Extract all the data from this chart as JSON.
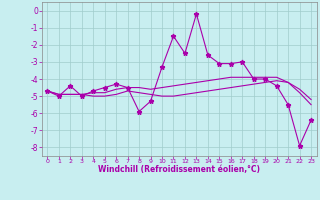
{
  "xlabel": "Windchill (Refroidissement éolien,°C)",
  "bg_color": "#c8eef0",
  "grid_color": "#a0cccc",
  "line_color": "#aa00aa",
  "xlim": [
    -0.5,
    23.5
  ],
  "ylim": [
    -8.5,
    0.5
  ],
  "xticks": [
    0,
    1,
    2,
    3,
    4,
    5,
    6,
    7,
    8,
    9,
    10,
    11,
    12,
    13,
    14,
    15,
    16,
    17,
    18,
    19,
    20,
    21,
    22,
    23
  ],
  "yticks": [
    0,
    -1,
    -2,
    -3,
    -4,
    -5,
    -6,
    -7,
    -8
  ],
  "line1_x": [
    0,
    1,
    2,
    3,
    4,
    5,
    6,
    7,
    8,
    9,
    10,
    11,
    12,
    13,
    14,
    15,
    16,
    17,
    18,
    19,
    20,
    21,
    22,
    23
  ],
  "line1_y": [
    -4.7,
    -5.0,
    -4.4,
    -5.0,
    -4.7,
    -4.5,
    -4.3,
    -4.5,
    -5.9,
    -5.3,
    -3.3,
    -1.5,
    -2.5,
    -0.2,
    -2.6,
    -3.1,
    -3.1,
    -3.0,
    -4.0,
    -4.0,
    -4.4,
    -5.5,
    -7.9,
    -6.4
  ],
  "line2_x": [
    0,
    1,
    2,
    3,
    4,
    5,
    6,
    7,
    8,
    9,
    10,
    11,
    12,
    13,
    14,
    15,
    16,
    17,
    18,
    19,
    20,
    21,
    22,
    23
  ],
  "line2_y": [
    -4.7,
    -4.9,
    -4.9,
    -4.9,
    -4.8,
    -4.8,
    -4.6,
    -4.5,
    -4.5,
    -4.6,
    -4.5,
    -4.4,
    -4.3,
    -4.2,
    -4.1,
    -4.0,
    -3.9,
    -3.9,
    -3.9,
    -3.9,
    -3.9,
    -4.2,
    -4.8,
    -5.5
  ],
  "line3_x": [
    0,
    1,
    2,
    3,
    4,
    5,
    6,
    7,
    8,
    9,
    10,
    11,
    12,
    13,
    14,
    15,
    16,
    17,
    18,
    19,
    20,
    21,
    22,
    23
  ],
  "line3_y": [
    -4.7,
    -4.9,
    -4.9,
    -4.9,
    -5.0,
    -5.0,
    -4.9,
    -4.7,
    -4.8,
    -4.9,
    -5.0,
    -5.0,
    -4.9,
    -4.8,
    -4.7,
    -4.6,
    -4.5,
    -4.4,
    -4.3,
    -4.2,
    -4.1,
    -4.2,
    -4.6,
    -5.2
  ]
}
